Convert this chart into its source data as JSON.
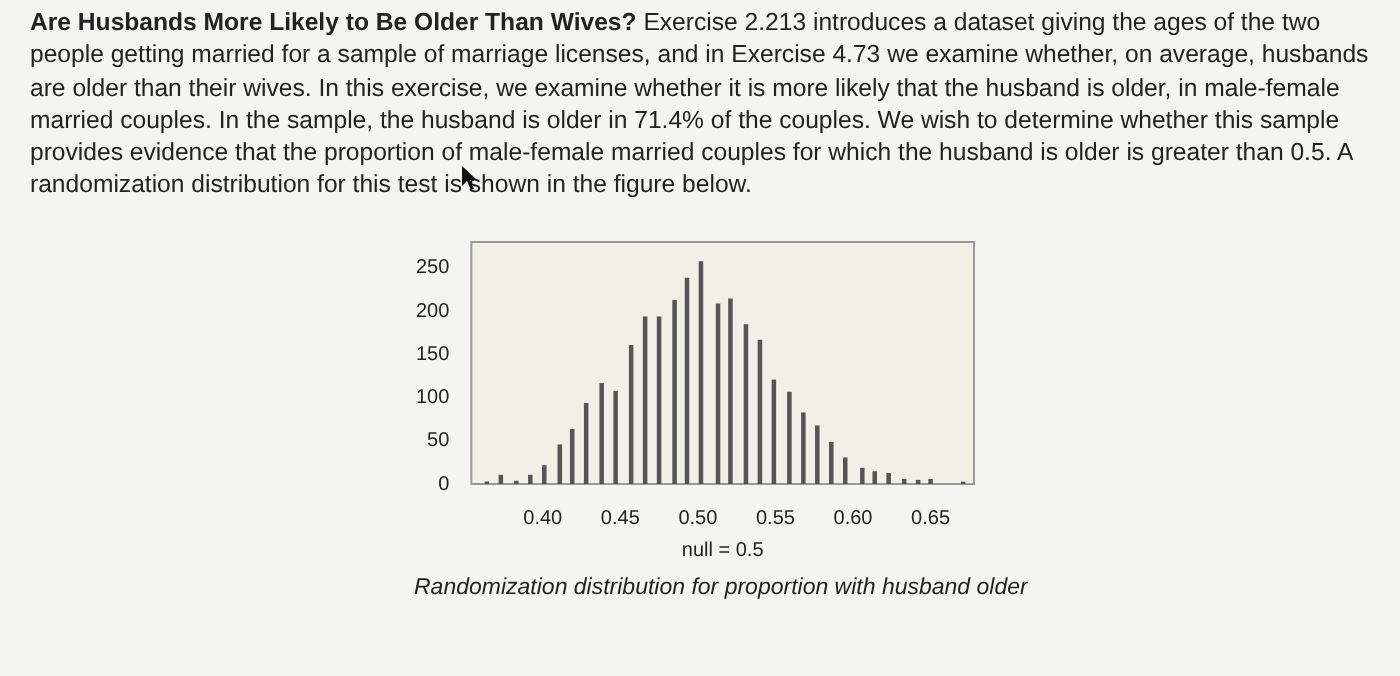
{
  "chart_data": {
    "type": "bar",
    "title": "Are Husbands More Likely to Be Older Than Wives?",
    "subtitle": "Exercise 2.213 introduces a dataset giving the ages of the two people getting married for a sample of marriage licenses, and in Exercise 4.73 we examine whether, on average, husbands are older than their wives. In this exercise, we examine whether it is more likely that the husband is older, in male-female married couples. In the sample, the husband is older in 71.4% of the couples. We wish to determine whether this sample provides evidence that the proportion of male-female married couples for which the husband is older is greater than 0.5. A randomization distribution for this test is shown in the figure below.",
    "xlabel": "null = 0.5",
    "annotations": [
      "Randomization distribution for proportion with husband older"
    ],
    "x": [
      0.364,
      0.373,
      0.383,
      0.392,
      0.401,
      0.411,
      0.419,
      0.428,
      0.438,
      0.447,
      0.457,
      0.466,
      0.475,
      0.485,
      0.493,
      0.502,
      0.513,
      0.521,
      0.531,
      0.54,
      0.549,
      0.559,
      0.568,
      0.577,
      0.586,
      0.595,
      0.606,
      0.614,
      0.623,
      0.633,
      0.642,
      0.65,
      0.671
    ],
    "values": [
      2,
      10,
      3,
      10,
      21,
      45,
      63,
      93,
      116,
      107,
      160,
      193,
      193,
      212,
      238,
      257,
      208,
      214,
      184,
      166,
      120,
      106,
      82,
      67,
      48,
      30,
      18,
      14,
      12,
      5,
      4,
      5,
      2
    ],
    "color": "#555555",
    "xlim": [
      0.354,
      0.678
    ],
    "xticks": [
      {
        "value": 0.4,
        "label": "0.40"
      },
      {
        "value": 0.45,
        "label": "0.45"
      },
      {
        "value": 0.5,
        "label": "0.50"
      },
      {
        "value": 0.55,
        "label": "0.55"
      },
      {
        "value": 0.6,
        "label": "0.60"
      },
      {
        "value": 0.65,
        "label": "0.65"
      }
    ],
    "ylim": [
      0,
      280
    ],
    "yticks": [
      0,
      50,
      100,
      150,
      200,
      250
    ],
    "grid": false,
    "legend": false
  }
}
